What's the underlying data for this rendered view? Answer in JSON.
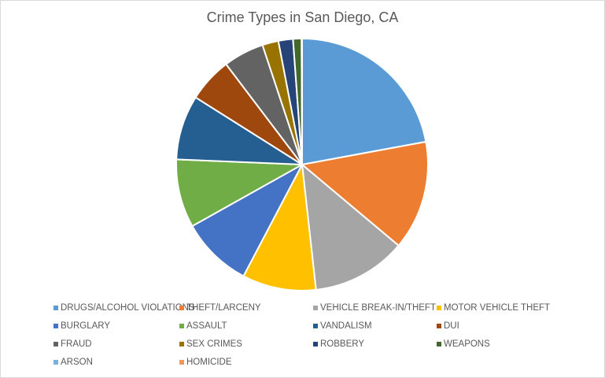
{
  "chart_data": {
    "type": "pie",
    "title": "Crime Types in San Diego, CA",
    "categories": [
      "DRUGS/ALCOHOL VIOLATIONS",
      "THEFT/LARCENY",
      "VEHICLE BREAK-IN/THEFT",
      "MOTOR VEHICLE THEFT",
      "BURGLARY",
      "ASSAULT",
      "VANDALISM",
      "DUI",
      "FRAUD",
      "SEX CRIMES",
      "ROBBERY",
      "WEAPONS",
      "ARSON",
      "HOMICIDE"
    ],
    "values": [
      22.4,
      14.2,
      12.3,
      9.6,
      9.3,
      8.9,
      8.4,
      5.8,
      5.3,
      2.1,
      1.9,
      1.1,
      0.05,
      0.02
    ],
    "colors": [
      "#5b9bd5",
      "#ed7d31",
      "#a5a5a5",
      "#ffc000",
      "#4472c4",
      "#70ad47",
      "#255e91",
      "#9e480e",
      "#636363",
      "#997300",
      "#264478",
      "#43682b",
      "#7cafdd",
      "#f1975a"
    ],
    "legend_position": "bottom",
    "start_angle_deg": 0,
    "direction": "clockwise"
  }
}
